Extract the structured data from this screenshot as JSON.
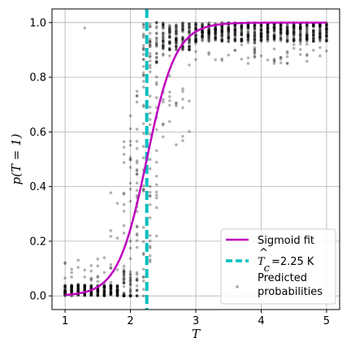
{
  "chart_data": {
    "type": "scatter",
    "xlabel": "T",
    "ylabel": "p(T = 1)",
    "xlim": [
      0.8,
      5.2
    ],
    "ylim": [
      -0.05,
      1.05
    ],
    "xticks": [
      "1",
      "2",
      "3",
      "4",
      "5"
    ],
    "yticks": [
      "0.0",
      "0.2",
      "0.4",
      "0.6",
      "0.8",
      "1.0"
    ],
    "grid": true,
    "legend_position": "bottom-right",
    "colors": {
      "sigmoid": "#bf00bf",
      "critical": "#00bfbf",
      "points": "#000000"
    },
    "sigmoid_fit": {
      "name": "Sigmoid fit",
      "midpoint": 2.25,
      "steepness": 4.5
    },
    "critical_temperature": {
      "value": 2.25,
      "legend_prefix": "T",
      "legend_subscript": "c",
      "legend_value": "=2.25 K"
    },
    "scatter": {
      "name_line1": "Predicted",
      "name_line2": "probabilities",
      "x_range": [
        1.0,
        5.0
      ],
      "step": 0.1,
      "note": "predicted probabilities cluster near 0 for T<2 and near 1 for T>2.5, with spread around the transition"
    }
  }
}
